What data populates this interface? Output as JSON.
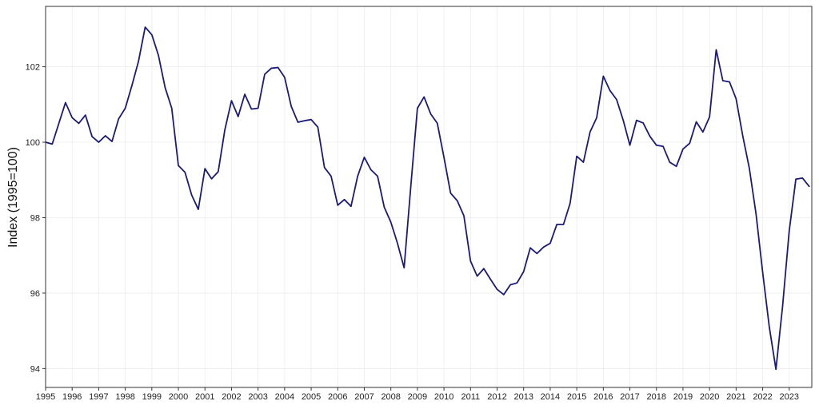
{
  "chart_data": {
    "type": "line",
    "title": "",
    "xlabel": "",
    "ylabel": "Index (1995=100)",
    "xlim": [
      1995.0,
      2023.85
    ],
    "ylim": [
      93.5,
      103.6
    ],
    "grid": true,
    "x_ticks": [
      "1995",
      "1996",
      "1997",
      "1998",
      "1999",
      "2000",
      "2001",
      "2002",
      "2003",
      "2004",
      "2005",
      "2006",
      "2007",
      "2008",
      "2009",
      "2010",
      "2011",
      "2012",
      "2013",
      "2014",
      "2015",
      "2016",
      "2017",
      "2018",
      "2019",
      "2020",
      "2021",
      "2022",
      "2023"
    ],
    "y_ticks": [
      "94",
      "96",
      "98",
      "100",
      "102"
    ],
    "series": [
      {
        "name": "Index",
        "color": "#1a1a7a",
        "x": [
          1995.0,
          1995.25,
          1995.5,
          1995.75,
          1996.0,
          1996.25,
          1996.5,
          1996.75,
          1997.0,
          1997.25,
          1997.5,
          1997.75,
          1998.0,
          1998.25,
          1998.5,
          1998.75,
          1999.0,
          1999.25,
          1999.5,
          1999.75,
          2000.0,
          2000.25,
          2000.5,
          2000.75,
          2001.0,
          2001.25,
          2001.5,
          2001.75,
          2002.0,
          2002.25,
          2002.5,
          2002.75,
          2003.0,
          2003.25,
          2003.5,
          2003.75,
          2004.0,
          2004.25,
          2004.5,
          2004.75,
          2005.0,
          2005.25,
          2005.5,
          2005.75,
          2006.0,
          2006.25,
          2006.5,
          2006.75,
          2007.0,
          2007.25,
          2007.5,
          2007.75,
          2008.0,
          2008.25,
          2008.5,
          2008.75,
          2009.0,
          2009.25,
          2009.5,
          2009.75,
          2010.0,
          2010.25,
          2010.5,
          2010.75,
          2011.0,
          2011.25,
          2011.5,
          2011.75,
          2012.0,
          2012.25,
          2012.5,
          2012.75,
          2013.0,
          2013.25,
          2013.5,
          2013.75,
          2014.0,
          2014.25,
          2014.5,
          2014.75,
          2015.0,
          2015.25,
          2015.5,
          2015.75,
          2016.0,
          2016.25,
          2016.5,
          2016.75,
          2017.0,
          2017.25,
          2017.5,
          2017.75,
          2018.0,
          2018.25,
          2018.5,
          2018.75,
          2019.0,
          2019.25,
          2019.5,
          2019.75,
          2020.0,
          2020.25,
          2020.5,
          2020.75,
          2021.0,
          2021.25,
          2021.5,
          2021.75,
          2022.0,
          2022.25,
          2022.5,
          2022.75,
          2023.0,
          2023.25,
          2023.5,
          2023.75
        ],
        "values": [
          100.0,
          99.95,
          100.5,
          101.05,
          100.65,
          100.5,
          100.72,
          100.15,
          100.0,
          100.17,
          100.02,
          100.62,
          100.9,
          101.5,
          102.15,
          103.05,
          102.85,
          102.3,
          101.45,
          100.9,
          99.38,
          99.2,
          98.6,
          98.22,
          99.3,
          99.03,
          99.22,
          100.33,
          101.1,
          100.68,
          101.27,
          100.88,
          100.9,
          101.8,
          101.96,
          101.98,
          101.72,
          100.95,
          100.53,
          100.57,
          100.6,
          100.4,
          99.33,
          99.1,
          98.33,
          98.48,
          98.3,
          99.1,
          99.6,
          99.27,
          99.1,
          98.28,
          97.88,
          97.32,
          96.67,
          98.82,
          100.9,
          101.2,
          100.75,
          100.5,
          99.6,
          98.65,
          98.45,
          98.05,
          96.85,
          96.45,
          96.65,
          96.37,
          96.1,
          95.96,
          96.22,
          96.27,
          96.57,
          97.2,
          97.05,
          97.22,
          97.32,
          97.82,
          97.82,
          98.38,
          99.63,
          99.47,
          100.27,
          100.65,
          101.75,
          101.37,
          101.13,
          100.58,
          99.92,
          100.58,
          100.51,
          100.16,
          99.92,
          99.89,
          99.47,
          99.36,
          99.82,
          99.97,
          100.54,
          100.27,
          100.67,
          102.45,
          101.63,
          101.6,
          101.15,
          100.17,
          99.3,
          98.1,
          96.55,
          95.1,
          93.98,
          95.65,
          97.65,
          99.02,
          99.05,
          98.83
        ]
      }
    ]
  }
}
